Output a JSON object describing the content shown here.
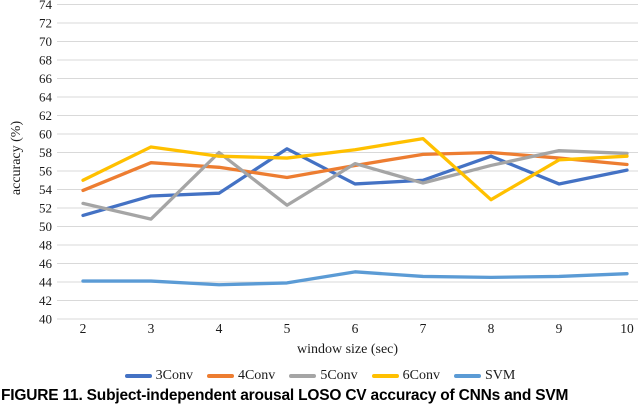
{
  "figure": {
    "caption": "FIGURE 11. Subject-independent arousal LOSO CV accuracy of CNNs and SVM"
  },
  "chart_data": {
    "type": "line",
    "title": "",
    "xlabel": "window size (sec)",
    "ylabel": "accuracy (%)",
    "x": [
      2,
      3,
      4,
      5,
      6,
      7,
      8,
      9,
      10
    ],
    "ylim": [
      40,
      74
    ],
    "ytick_step": 2,
    "grid": true,
    "grid_color": "#D9D9D9",
    "legend_position": "bottom",
    "series": [
      {
        "name": "3Conv",
        "color": "#4472C4",
        "values": [
          51.2,
          53.3,
          53.6,
          58.4,
          54.6,
          55.0,
          57.6,
          54.6,
          56.1
        ]
      },
      {
        "name": "4Conv",
        "color": "#ED7D31",
        "values": [
          53.9,
          56.9,
          56.4,
          55.3,
          56.6,
          57.8,
          58.0,
          57.4,
          56.7
        ]
      },
      {
        "name": "5Conv",
        "color": "#A5A5A5",
        "values": [
          52.5,
          50.8,
          58.0,
          52.3,
          56.8,
          54.7,
          56.6,
          58.2,
          57.9
        ]
      },
      {
        "name": "6Conv",
        "color": "#FFC000",
        "values": [
          55.0,
          58.6,
          57.6,
          57.4,
          58.3,
          59.5,
          52.9,
          57.2,
          57.6
        ]
      },
      {
        "name": "SVM",
        "color": "#5B9BD5",
        "values": [
          44.1,
          44.1,
          43.7,
          43.9,
          45.1,
          44.6,
          44.5,
          44.6,
          44.9
        ]
      }
    ]
  }
}
